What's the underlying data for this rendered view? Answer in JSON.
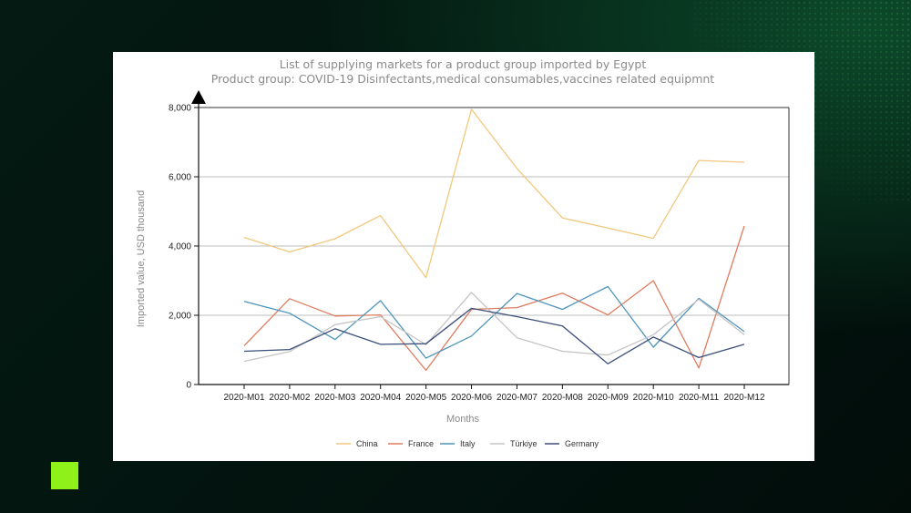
{
  "chart_data": {
    "type": "line",
    "title": "List of supplying markets for a product group imported by Egypt",
    "subtitle": "Product group: COVID-19 Disinfectants,medical consumables,vaccines related equipmnt",
    "xlabel": "Months",
    "ylabel": "Imported value, USD thousand",
    "ylim": [
      0,
      8000
    ],
    "yticks": [
      "0",
      "2,000",
      "4,000",
      "6,000",
      "8,000"
    ],
    "ytick_values": [
      0,
      2000,
      4000,
      6000,
      8000
    ],
    "categories": [
      "2020-M01",
      "2020-M02",
      "2020-M03",
      "2020-M04",
      "2020-M05",
      "2020-M06",
      "2020-M07",
      "2020-M08",
      "2020-M09",
      "2020-M10",
      "2020-M11",
      "2020-M12"
    ],
    "grid": "horizontal",
    "legend_position": "bottom",
    "series": [
      {
        "name": "China",
        "color": "#f2c77e",
        "values": [
          4250,
          3830,
          4210,
          4880,
          3090,
          7950,
          6240,
          4810,
          4520,
          4220,
          6470,
          6420
        ]
      },
      {
        "name": "France",
        "color": "#e07b5f",
        "values": [
          1120,
          2480,
          1980,
          2010,
          410,
          2170,
          2220,
          2640,
          2010,
          3000,
          480,
          4580
        ]
      },
      {
        "name": "Italy",
        "color": "#4e94ba",
        "values": [
          2400,
          2060,
          1300,
          2420,
          760,
          1400,
          2630,
          2170,
          2830,
          1080,
          2490,
          1530
        ]
      },
      {
        "name": "Türkiye",
        "color": "#c5c5c5",
        "values": [
          670,
          950,
          1730,
          1960,
          1150,
          2660,
          1350,
          960,
          850,
          1440,
          2460,
          1440
        ]
      },
      {
        "name": "Germany",
        "color": "#3b4f7a",
        "values": [
          960,
          1010,
          1610,
          1160,
          1180,
          2200,
          1960,
          1690,
          600,
          1370,
          780,
          1160
        ]
      }
    ]
  }
}
